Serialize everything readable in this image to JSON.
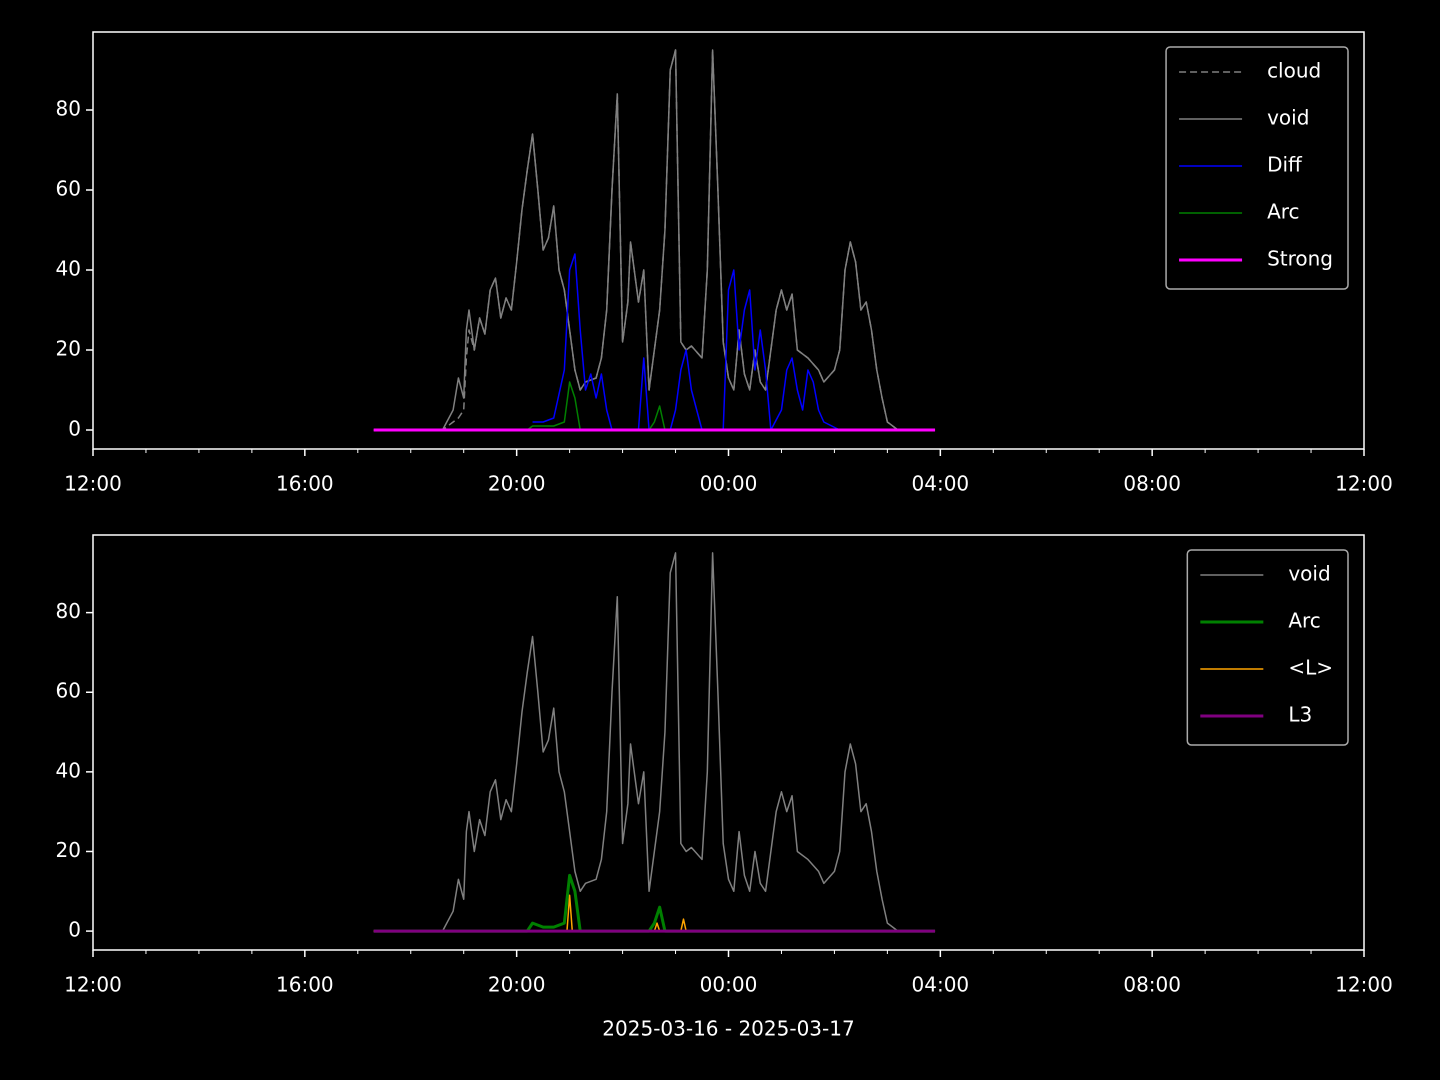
{
  "chart_data": [
    {
      "type": "line",
      "xlim": [
        12,
        36
      ],
      "ylim": [
        -4.75,
        99.5
      ],
      "xticks": [
        {
          "value": 12,
          "label": "12:00"
        },
        {
          "value": 16,
          "label": "16:00"
        },
        {
          "value": 20,
          "label": "20:00"
        },
        {
          "value": 24,
          "label": "00:00"
        },
        {
          "value": 28,
          "label": "04:00"
        },
        {
          "value": 32,
          "label": "08:00"
        },
        {
          "value": 36,
          "label": "12:00"
        }
      ],
      "xminorticks": [
        13,
        14,
        15,
        17,
        18,
        19,
        21,
        22,
        23,
        25,
        26,
        27,
        29,
        30,
        31,
        33,
        34,
        35
      ],
      "yticks": [
        0,
        20,
        40,
        60,
        80
      ],
      "legend": "upper right",
      "series": [
        {
          "name": "cloud",
          "color": "#808080",
          "linestyle": "dashed",
          "linewidth": 1.5,
          "x": [
            17.3,
            18.6,
            18.8,
            18.9,
            19.0,
            19.05,
            19.1,
            19.2,
            19.3,
            19.4,
            19.5,
            19.6,
            19.7,
            19.8,
            19.9,
            20.0,
            20.1,
            20.2,
            20.3,
            20.4,
            20.5,
            20.6,
            20.7,
            20.8,
            20.9,
            21.0,
            21.1,
            21.2,
            21.3,
            21.5,
            21.6,
            21.7,
            21.8,
            21.9,
            22.0,
            22.1,
            22.15,
            22.3,
            22.4,
            22.5,
            22.6,
            22.7,
            22.8,
            22.9,
            23.0,
            23.1,
            23.2,
            23.3,
            23.5,
            23.6,
            23.7,
            23.8,
            23.9,
            24.0,
            24.1,
            24.2,
            24.3,
            24.4,
            24.5,
            24.6,
            24.7,
            24.8,
            24.9,
            25.0,
            25.1,
            25.2,
            25.3,
            25.5,
            25.7,
            25.8,
            26.0,
            26.1,
            26.2,
            26.3,
            26.4,
            26.5,
            26.6,
            26.7,
            26.8,
            26.9,
            27.0,
            27.2,
            27.9
          ],
          "values": [
            0,
            0,
            2,
            3,
            5,
            18,
            25,
            20,
            28,
            24,
            35,
            38,
            28,
            33,
            30,
            42,
            55,
            65,
            74,
            60,
            45,
            48,
            56,
            40,
            35,
            25,
            15,
            10,
            12,
            13,
            18,
            30,
            60,
            84,
            22,
            32,
            47,
            32,
            40,
            10,
            20,
            30,
            50,
            90,
            95,
            22,
            20,
            21,
            18,
            40,
            95,
            60,
            22,
            13,
            10,
            25,
            14,
            10,
            20,
            12,
            10,
            20,
            30,
            35,
            30,
            34,
            20,
            18,
            15,
            12,
            15,
            20,
            40,
            47,
            42,
            30,
            32,
            25,
            15,
            8,
            2,
            0,
            0
          ]
        },
        {
          "name": "void",
          "color": "#808080",
          "linestyle": "solid",
          "linewidth": 1.5,
          "x": [
            17.3,
            18.6,
            18.8,
            18.9,
            19.0,
            19.05,
            19.1,
            19.2,
            19.3,
            19.4,
            19.5,
            19.6,
            19.7,
            19.8,
            19.9,
            20.0,
            20.1,
            20.2,
            20.3,
            20.4,
            20.5,
            20.6,
            20.7,
            20.8,
            20.9,
            21.0,
            21.1,
            21.2,
            21.3,
            21.5,
            21.6,
            21.7,
            21.8,
            21.9,
            22.0,
            22.1,
            22.15,
            22.3,
            22.4,
            22.5,
            22.6,
            22.7,
            22.8,
            22.9,
            23.0,
            23.1,
            23.2,
            23.3,
            23.5,
            23.6,
            23.7,
            23.8,
            23.9,
            24.0,
            24.1,
            24.2,
            24.3,
            24.4,
            24.5,
            24.6,
            24.7,
            24.8,
            24.9,
            25.0,
            25.1,
            25.2,
            25.3,
            25.5,
            25.7,
            25.8,
            26.0,
            26.1,
            26.2,
            26.3,
            26.4,
            26.5,
            26.6,
            26.7,
            26.8,
            26.9,
            27.0,
            27.2,
            27.9
          ],
          "values": [
            0,
            0,
            5,
            13,
            8,
            25,
            30,
            20,
            28,
            24,
            35,
            38,
            28,
            33,
            30,
            42,
            55,
            65,
            74,
            60,
            45,
            48,
            56,
            40,
            35,
            25,
            15,
            10,
            12,
            13,
            18,
            30,
            60,
            84,
            22,
            32,
            47,
            32,
            40,
            10,
            20,
            30,
            50,
            90,
            95,
            22,
            20,
            21,
            18,
            40,
            95,
            60,
            22,
            13,
            10,
            25,
            14,
            10,
            20,
            12,
            10,
            20,
            30,
            35,
            30,
            34,
            20,
            18,
            15,
            12,
            15,
            20,
            40,
            47,
            42,
            30,
            32,
            25,
            15,
            8,
            2,
            0,
            0
          ]
        },
        {
          "name": "Diff",
          "color": "#0000ff",
          "linestyle": "solid",
          "linewidth": 1.5,
          "x": [
            20.3,
            20.5,
            20.7,
            20.9,
            21.0,
            21.1,
            21.2,
            21.3,
            21.4,
            21.5,
            21.6,
            21.7,
            21.8,
            22.3,
            22.4,
            22.5,
            22.9,
            23.0,
            23.1,
            23.2,
            23.3,
            23.4,
            23.5,
            23.9,
            24.0,
            24.1,
            24.2,
            24.3,
            24.4,
            24.5,
            24.6,
            24.7,
            24.8,
            25.0,
            25.1,
            25.2,
            25.3,
            25.4,
            25.5,
            25.6,
            25.7,
            25.8,
            26.1
          ],
          "values": [
            2,
            2,
            3,
            15,
            40,
            44,
            25,
            10,
            14,
            8,
            14,
            5,
            0,
            0,
            18,
            0,
            0,
            5,
            15,
            20,
            10,
            5,
            0,
            0,
            35,
            40,
            20,
            30,
            35,
            15,
            25,
            15,
            0,
            5,
            15,
            18,
            10,
            5,
            15,
            12,
            5,
            2,
            0
          ]
        },
        {
          "name": "Arc",
          "color": "#008000",
          "linestyle": "solid",
          "linewidth": 1.5,
          "x": [
            17.3,
            20.2,
            20.3,
            20.5,
            20.7,
            20.9,
            21.0,
            21.1,
            21.2,
            22.5,
            22.6,
            22.7,
            22.8,
            27.9
          ],
          "values": [
            0,
            0,
            1,
            1,
            1,
            2,
            12,
            8,
            0,
            0,
            2,
            6,
            0,
            0
          ]
        },
        {
          "name": "Strong",
          "color": "#ff00ff",
          "linestyle": "solid",
          "linewidth": 3,
          "x": [
            17.3,
            27.9
          ],
          "values": [
            0,
            0
          ]
        }
      ]
    },
    {
      "type": "line",
      "xlim": [
        12,
        36
      ],
      "ylim": [
        -4.75,
        99.5
      ],
      "xticks": [
        {
          "value": 12,
          "label": "12:00"
        },
        {
          "value": 16,
          "label": "16:00"
        },
        {
          "value": 20,
          "label": "20:00"
        },
        {
          "value": 24,
          "label": "00:00"
        },
        {
          "value": 28,
          "label": "04:00"
        },
        {
          "value": 32,
          "label": "08:00"
        },
        {
          "value": 36,
          "label": "12:00"
        }
      ],
      "xminorticks": [
        13,
        14,
        15,
        17,
        18,
        19,
        21,
        22,
        23,
        25,
        26,
        27,
        29,
        30,
        31,
        33,
        34,
        35
      ],
      "yticks": [
        0,
        20,
        40,
        60,
        80
      ],
      "legend": "upper right",
      "xlabel": "2025-03-16 - 2025-03-17",
      "series": [
        {
          "name": "void",
          "color": "#808080",
          "linestyle": "solid",
          "linewidth": 1.5,
          "x": [
            17.3,
            18.6,
            18.8,
            18.9,
            19.0,
            19.05,
            19.1,
            19.2,
            19.3,
            19.4,
            19.5,
            19.6,
            19.7,
            19.8,
            19.9,
            20.0,
            20.1,
            20.2,
            20.3,
            20.4,
            20.5,
            20.6,
            20.7,
            20.8,
            20.9,
            21.0,
            21.1,
            21.2,
            21.3,
            21.5,
            21.6,
            21.7,
            21.8,
            21.9,
            22.0,
            22.1,
            22.15,
            22.3,
            22.4,
            22.5,
            22.6,
            22.7,
            22.8,
            22.9,
            23.0,
            23.1,
            23.2,
            23.3,
            23.5,
            23.6,
            23.7,
            23.8,
            23.9,
            24.0,
            24.1,
            24.2,
            24.3,
            24.4,
            24.5,
            24.6,
            24.7,
            24.8,
            24.9,
            25.0,
            25.1,
            25.2,
            25.3,
            25.5,
            25.7,
            25.8,
            26.0,
            26.1,
            26.2,
            26.3,
            26.4,
            26.5,
            26.6,
            26.7,
            26.8,
            26.9,
            27.0,
            27.2,
            27.9
          ],
          "values": [
            0,
            0,
            5,
            13,
            8,
            25,
            30,
            20,
            28,
            24,
            35,
            38,
            28,
            33,
            30,
            42,
            55,
            65,
            74,
            60,
            45,
            48,
            56,
            40,
            35,
            25,
            15,
            10,
            12,
            13,
            18,
            30,
            60,
            84,
            22,
            32,
            47,
            32,
            40,
            10,
            20,
            30,
            50,
            90,
            95,
            22,
            20,
            21,
            18,
            40,
            95,
            60,
            22,
            13,
            10,
            25,
            14,
            10,
            20,
            12,
            10,
            20,
            30,
            35,
            30,
            34,
            20,
            18,
            15,
            12,
            15,
            20,
            40,
            47,
            42,
            30,
            32,
            25,
            15,
            8,
            2,
            0,
            0
          ]
        },
        {
          "name": "Arc",
          "color": "#008000",
          "linestyle": "solid",
          "linewidth": 3,
          "x": [
            17.3,
            20.2,
            20.3,
            20.5,
            20.7,
            20.9,
            21.0,
            21.1,
            21.2,
            22.5,
            22.6,
            22.7,
            22.8,
            27.9
          ],
          "values": [
            0,
            0,
            2,
            1,
            1,
            2,
            14,
            10,
            0,
            0,
            2,
            6,
            0,
            0
          ]
        },
        {
          "name": "<L>",
          "color": "#ffa500",
          "linestyle": "solid",
          "linewidth": 1.5,
          "x": [
            17.3,
            20.95,
            21.0,
            21.05,
            22.6,
            22.65,
            22.7,
            23.1,
            23.15,
            23.2,
            27.9
          ],
          "values": [
            0,
            0,
            9,
            0,
            0,
            2,
            0,
            0,
            3,
            0,
            0
          ]
        },
        {
          "name": "L3",
          "color": "#800080",
          "linestyle": "solid",
          "linewidth": 3,
          "x": [
            17.3,
            27.9
          ],
          "values": [
            0,
            0
          ]
        }
      ]
    }
  ]
}
